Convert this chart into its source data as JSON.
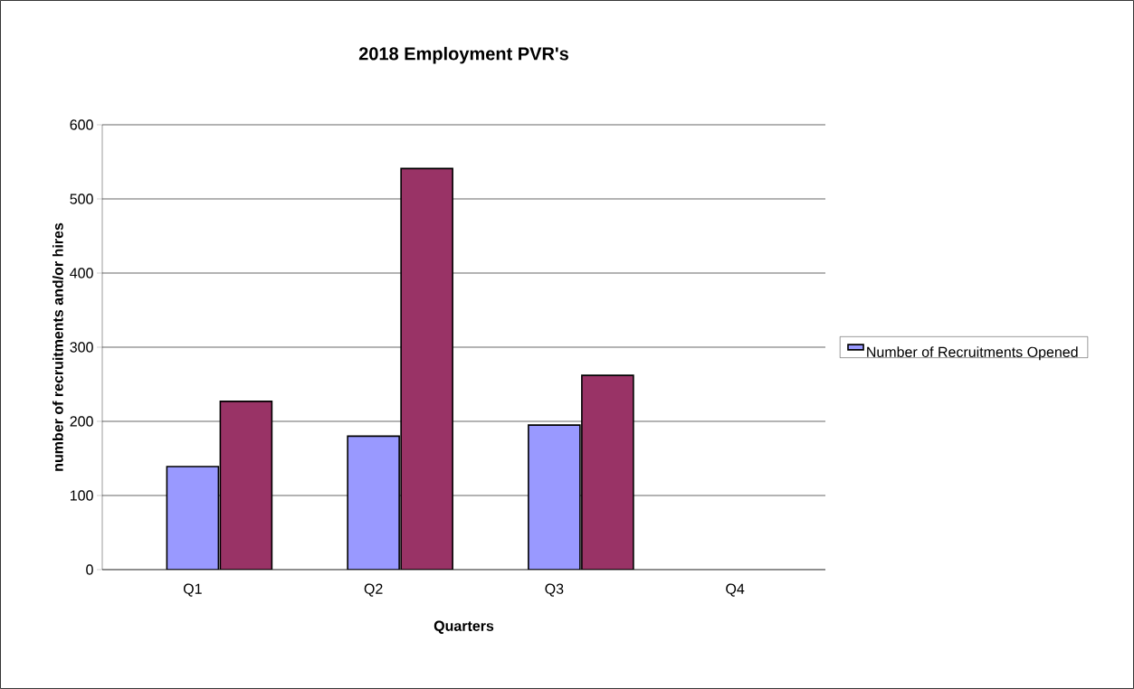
{
  "chart_data": {
    "type": "bar",
    "title": "2018 Employment PVR's",
    "xlabel": "Quarters",
    "ylabel": "number of recruitments and/or hires",
    "categories": [
      "Q1",
      "Q2",
      "Q3",
      "Q4"
    ],
    "series": [
      {
        "name": "Number of Recruitments Opened",
        "color": "#9999ff",
        "values": [
          139,
          180,
          195,
          null
        ]
      },
      {
        "color": "#993366",
        "values": [
          227,
          541,
          262,
          null
        ]
      }
    ],
    "ylim": [
      0,
      600
    ],
    "yticks": [
      0,
      100,
      200,
      300,
      400,
      500,
      600
    ],
    "grid": "y",
    "legend": "right"
  }
}
